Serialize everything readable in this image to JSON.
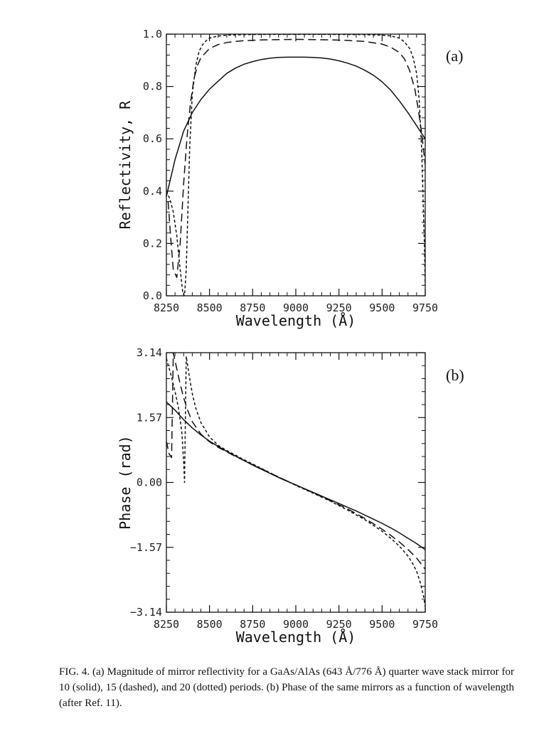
{
  "caption": "FIG. 4. (a) Magnitude of mirror reflectivity for a GaAs/AlAs (643 Å/776 Å) quarter wave stack mirror for 10 (solid), 15 (dashed), and 20 (dotted) periods. (b) Phase of the same mirrors as a function of wavelength (after Ref. 11).",
  "chart_data": [
    {
      "type": "line",
      "panel_label": "(a)",
      "xlabel": "Wavelength (Å)",
      "ylabel": "Reflectivity, R",
      "xlim": [
        8250,
        9750
      ],
      "ylim": [
        0.0,
        1.0
      ],
      "xticks": [
        8250,
        8500,
        8750,
        9000,
        9250,
        9500,
        9750
      ],
      "yticks": [
        "0.0",
        "0.2",
        "0.4",
        "0.6",
        "0.8",
        "1.0"
      ],
      "series": [
        {
          "style": "solid",
          "x": [
            8250,
            8300,
            8350,
            8400,
            8450,
            8500,
            8550,
            8600,
            8650,
            8700,
            8750,
            8800,
            8850,
            8900,
            8950,
            9000,
            9050,
            9100,
            9150,
            9200,
            9250,
            9300,
            9350,
            9400,
            9450,
            9500,
            9550,
            9600,
            9650,
            9700,
            9750
          ],
          "y": [
            0.38,
            0.52,
            0.63,
            0.7,
            0.75,
            0.79,
            0.82,
            0.85,
            0.87,
            0.885,
            0.895,
            0.903,
            0.908,
            0.911,
            0.912,
            0.912,
            0.912,
            0.911,
            0.909,
            0.905,
            0.898,
            0.889,
            0.878,
            0.862,
            0.843,
            0.818,
            0.786,
            0.745,
            0.7,
            0.65,
            0.6
          ]
        },
        {
          "style": "dashed",
          "x": [
            8260,
            8275,
            8290,
            8310,
            8330,
            8350,
            8370,
            8390,
            8410,
            8430,
            8450,
            8500,
            8550,
            8600,
            8650,
            8700,
            8800,
            8900,
            9000,
            9100,
            9200,
            9300,
            9400,
            9500,
            9550,
            9600,
            9630,
            9660,
            9690,
            9710,
            9730,
            9750
          ],
          "y": [
            0.36,
            0.22,
            0.1,
            0.07,
            0.2,
            0.43,
            0.61,
            0.74,
            0.83,
            0.88,
            0.91,
            0.945,
            0.96,
            0.968,
            0.972,
            0.975,
            0.978,
            0.979,
            0.98,
            0.979,
            0.978,
            0.976,
            0.972,
            0.962,
            0.95,
            0.93,
            0.905,
            0.86,
            0.79,
            0.71,
            0.62,
            0.5
          ]
        },
        {
          "style": "dotted",
          "x": [
            8250,
            8270,
            8290,
            8310,
            8330,
            8345,
            8355,
            8365,
            8375,
            8385,
            8400,
            8420,
            8440,
            8460,
            8480,
            8500,
            8550,
            8600,
            8700,
            8800,
            9000,
            9200,
            9400,
            9500,
            9550,
            9600,
            9630,
            9660,
            9680,
            9700,
            9715,
            9730,
            9745,
            9750
          ],
          "y": [
            0.4,
            0.37,
            0.32,
            0.23,
            0.1,
            0.01,
            0.0,
            0.1,
            0.33,
            0.57,
            0.77,
            0.88,
            0.935,
            0.96,
            0.975,
            0.985,
            0.993,
            0.996,
            0.998,
            0.999,
            0.999,
            0.999,
            0.998,
            0.996,
            0.993,
            0.985,
            0.97,
            0.945,
            0.91,
            0.85,
            0.75,
            0.55,
            0.2,
            0.04
          ]
        }
      ]
    },
    {
      "type": "line",
      "panel_label": "(b)",
      "xlabel": "Wavelength (Å)",
      "ylabel": "Phase (rad)",
      "xlim": [
        8250,
        9750
      ],
      "ylim": [
        -3.14,
        3.14
      ],
      "xticks": [
        8250,
        8500,
        8750,
        9000,
        9250,
        9500,
        9750
      ],
      "yticks": [
        "3.14",
        "1.57",
        "0.00",
        "−1.57",
        "−3.14"
      ],
      "series": [
        {
          "style": "solid",
          "x": [
            8250,
            8300,
            8350,
            8400,
            8450,
            8500,
            8550,
            8600,
            8650,
            8700,
            8750,
            8800,
            8850,
            8900,
            8950,
            9000,
            9050,
            9100,
            9150,
            9200,
            9250,
            9300,
            9350,
            9400,
            9450,
            9500,
            9550,
            9600,
            9650,
            9700,
            9750
          ],
          "y": [
            1.95,
            1.75,
            1.52,
            1.32,
            1.15,
            1.0,
            0.87,
            0.75,
            0.64,
            0.53,
            0.42,
            0.32,
            0.22,
            0.12,
            0.03,
            -0.06,
            -0.15,
            -0.24,
            -0.33,
            -0.42,
            -0.51,
            -0.6,
            -0.69,
            -0.79,
            -0.89,
            -0.99,
            -1.1,
            -1.22,
            -1.35,
            -1.48,
            -1.63
          ]
        },
        {
          "style": "dashed",
          "x": [
            8250,
            8265,
            8280,
            8290,
            8300,
            8310,
            8330,
            8350,
            8370,
            8400,
            8450,
            8500,
            8550,
            8600,
            8650,
            8700,
            8800,
            8900,
            9000,
            9100,
            9200,
            9300,
            9400,
            9450,
            9500,
            9550,
            9600,
            9650,
            9700,
            9750
          ],
          "y": [
            1.0,
            0.7,
            0.6,
            3.14,
            2.95,
            2.75,
            2.38,
            2.05,
            1.78,
            1.47,
            1.17,
            0.98,
            0.85,
            0.74,
            0.63,
            0.53,
            0.33,
            0.13,
            -0.06,
            -0.25,
            -0.44,
            -0.64,
            -0.87,
            -1.0,
            -1.13,
            -1.28,
            -1.44,
            -1.62,
            -1.83,
            -2.1
          ]
        },
        {
          "style": "dotted",
          "x": [
            8250,
            8260,
            8280,
            8300,
            8320,
            8340,
            8350,
            8355,
            8360,
            8365,
            8380,
            8400,
            8420,
            8450,
            8500,
            8550,
            8600,
            8650,
            8700,
            8800,
            8900,
            9000,
            9100,
            9200,
            9300,
            9400,
            9450,
            9500,
            9550,
            9600,
            9650,
            9680,
            9700,
            9720,
            9740,
            9750
          ],
          "y": [
            3.0,
            2.85,
            2.55,
            2.2,
            1.8,
            1.2,
            0.5,
            0.0,
            1.5,
            3.05,
            2.65,
            2.15,
            1.8,
            1.45,
            1.1,
            0.9,
            0.77,
            0.66,
            0.55,
            0.34,
            0.13,
            -0.07,
            -0.26,
            -0.45,
            -0.67,
            -0.9,
            -1.04,
            -1.18,
            -1.35,
            -1.54,
            -1.78,
            -1.98,
            -2.15,
            -2.4,
            -2.75,
            -3.0
          ]
        }
      ]
    }
  ]
}
